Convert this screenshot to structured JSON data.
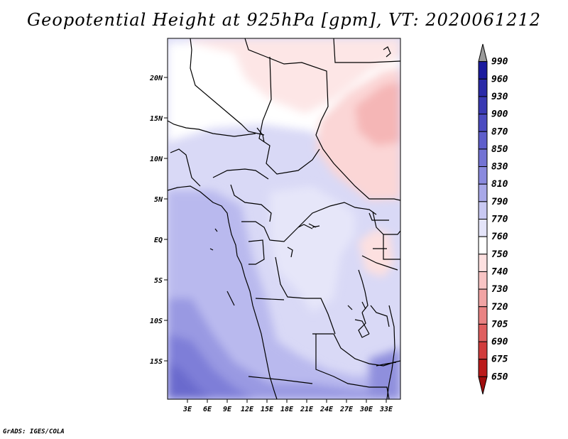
{
  "title": "Geopotential Height at 925hPa [gpm], VT: 2020061212",
  "credit": "GrADS: IGES/COLA",
  "map": {
    "lat_labels": [
      "20N",
      "15N",
      "10N",
      "5N",
      "EQ",
      "5S",
      "10S",
      "15S"
    ],
    "lon_labels": [
      "3E",
      "6E",
      "9E",
      "12E",
      "15E",
      "18E",
      "21E",
      "24E",
      "27E",
      "30E",
      "33E"
    ]
  },
  "colorbar": {
    "levels": [
      "990",
      "960",
      "930",
      "900",
      "870",
      "850",
      "830",
      "810",
      "790",
      "770",
      "760",
      "750",
      "740",
      "730",
      "720",
      "705",
      "690",
      "675",
      "650"
    ],
    "colors": [
      "#0a0a8c",
      "#1a1a9e",
      "#2a2aa8",
      "#3939b3",
      "#4b4bc0",
      "#5e5ecb",
      "#7373d4",
      "#8a8ade",
      "#a8a8e8",
      "#c8c8f2",
      "#e4e4f9",
      "#ffffff",
      "#fde0e0",
      "#f8c4c4",
      "#f1a4a4",
      "#e98383",
      "#df5f5f",
      "#d13c3c",
      "#bb1b1b",
      "#a00d0d"
    ]
  }
}
